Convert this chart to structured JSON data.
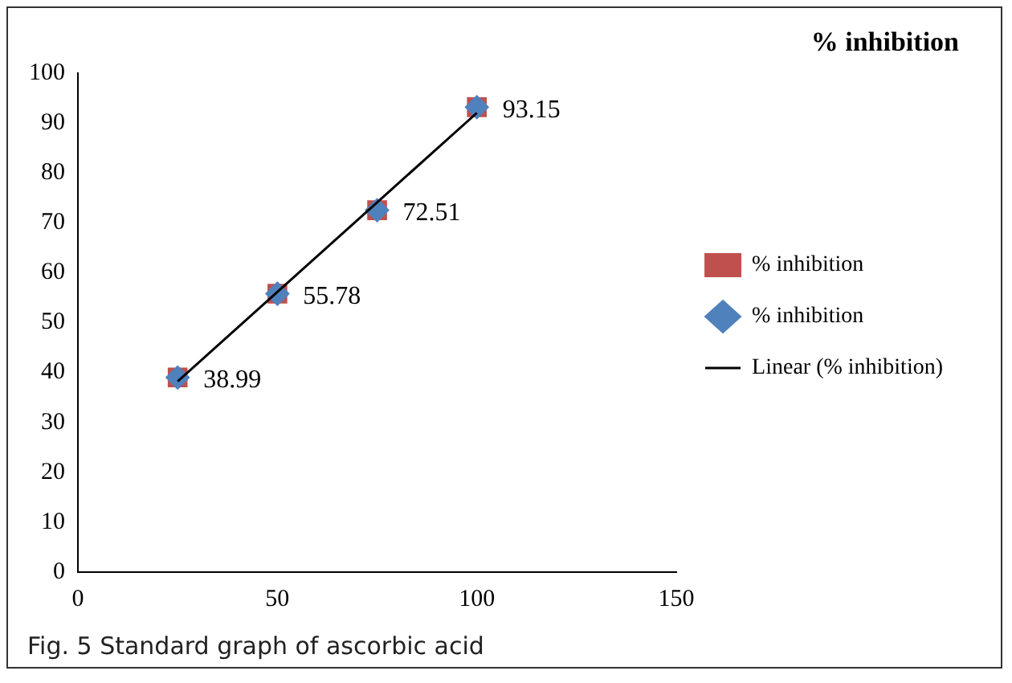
{
  "chart_data": {
    "type": "scatter",
    "title": "% inhibition",
    "x": [
      25,
      50,
      75,
      100
    ],
    "series": [
      {
        "name": "% inhibition",
        "type": "scatter",
        "color": "#c0504d",
        "marker": "square",
        "values": [
          38.99,
          55.78,
          72.51,
          93.15
        ],
        "value_labels": [
          "38.99",
          "55.78",
          "72.51",
          "93.15"
        ]
      },
      {
        "name": "% inhibition",
        "type": "scatter",
        "color": "#4f81bd",
        "marker": "diamond",
        "values": [
          38.99,
          55.78,
          72.51,
          93.15
        ]
      },
      {
        "name": "Linear (% inhibition)",
        "type": "line",
        "color": "#000000",
        "marker": "none",
        "x": [
          25,
          100
        ],
        "values": [
          38.2,
          92.0
        ]
      }
    ],
    "xlim": [
      0,
      150
    ],
    "xticks": [
      0,
      50,
      100,
      150
    ],
    "ylim": [
      0,
      100
    ],
    "yticks": [
      0,
      10,
      20,
      30,
      40,
      50,
      60,
      70,
      80,
      90,
      100
    ],
    "grid": false,
    "legend": "right",
    "annotations": [
      "Fig. 5 Standard graph of ascorbic acid"
    ]
  }
}
